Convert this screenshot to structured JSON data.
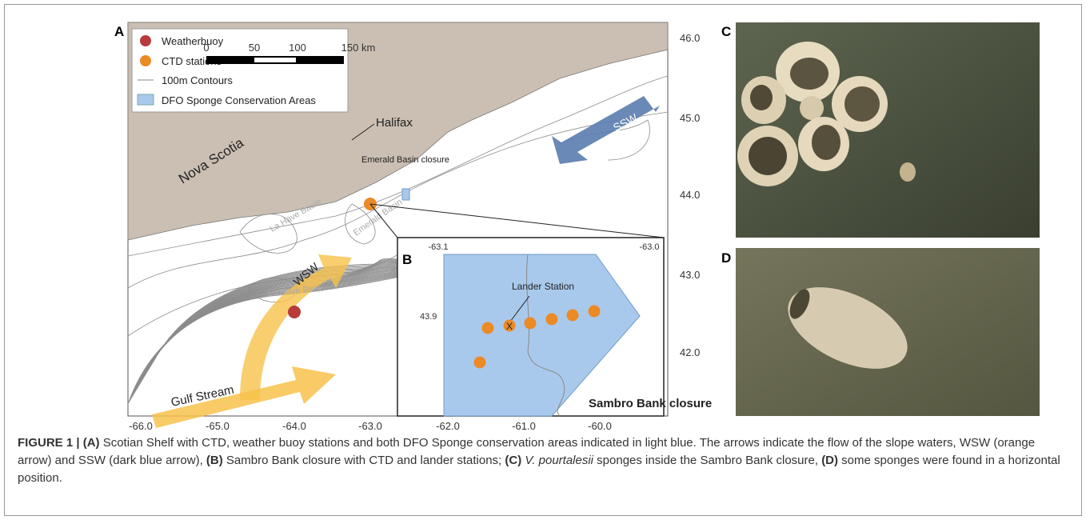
{
  "figure": {
    "panel_labels": [
      "A",
      "B",
      "C",
      "D"
    ],
    "legend": [
      "Weatherbuoy",
      "CTD stations",
      "100m Contours",
      "DFO Sponge Conservation Areas"
    ],
    "scale_bar": [
      "0",
      "50",
      "100",
      "150 km"
    ],
    "map_labels": {
      "halifax": "Halifax",
      "nova_scotia": "Nova Scotia",
      "emerald_closure": "Emerald Basin closure",
      "ssw": "SSW",
      "wsw": "WSW",
      "gulf_stream": "Gulf Stream",
      "la_have_basin": "La Have Basin",
      "la_have_bank": "La Have Bank",
      "emerald_basin": "Emerald Basin"
    },
    "lat_labels": [
      "46.0",
      "45.0",
      "44.0",
      "43.0",
      "42.0"
    ],
    "lon_labels": [
      "-66.0",
      "-65.0",
      "-64.0",
      "-63.0",
      "-62.0",
      "-61.0",
      "-60.0"
    ],
    "inset": {
      "lon_labels": [
        "-63.1",
        "-63.0"
      ],
      "lat_label": "43.9",
      "lander": "Lander Station",
      "lander_mark": "X",
      "closure": "Sambro Bank closure"
    }
  },
  "caption": {
    "parts": [
      "FIGURE 1 | (A)",
      " Scotian Shelf with CTD, weather buoy stations and both DFO Sponge conservation areas indicated in light blue. The arrows indicate the flow of the slope waters, WSW (orange arrow) and SSW (dark blue arrow), ",
      "(B)",
      " Sambro Bank closure with CTD and lander stations; ",
      "(C) ",
      "V. pourtalesii",
      " sponges inside the Sambro Bank closure, ",
      "(D)",
      " some sponges were found in a horizontal position."
    ]
  }
}
